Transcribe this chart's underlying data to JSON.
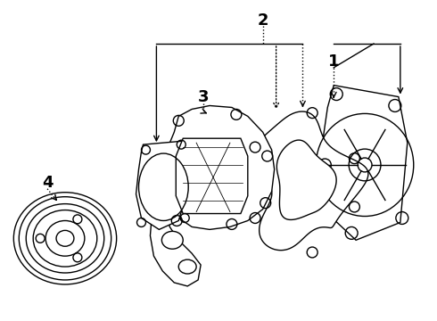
{
  "background_color": "#ffffff",
  "line_color": "#000000",
  "label_fontsize": 13,
  "label_fontweight": "bold",
  "fig_width": 4.9,
  "fig_height": 3.6,
  "dpi": 100,
  "lw": 1.0
}
